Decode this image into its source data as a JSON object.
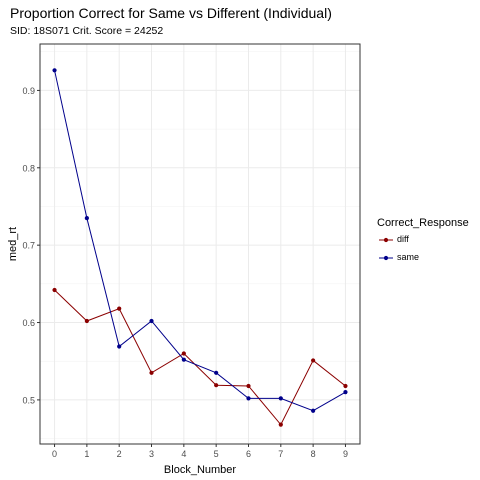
{
  "chart_data": {
    "type": "line",
    "title": "Proportion Correct for Same vs Different (Individual)",
    "subtitle": "SID:  18S071 Crit. Score =  24252",
    "xlabel": "Block_Number",
    "ylabel": "med_rt",
    "x": [
      0,
      1,
      2,
      3,
      4,
      5,
      6,
      7,
      8,
      9
    ],
    "xlim": [
      -0.45,
      9.45
    ],
    "ylim": [
      0.443,
      0.96
    ],
    "xticks": [
      "0",
      "1",
      "2",
      "3",
      "4",
      "5",
      "6",
      "7",
      "8",
      "9"
    ],
    "yticks": [
      0.5,
      0.6,
      0.7,
      0.8,
      0.9
    ],
    "ytick_labels": [
      "0.5",
      "0.6",
      "0.7",
      "0.8",
      "0.9"
    ],
    "grid": true,
    "legend_title": "Correct_Response",
    "legend_placement": "right",
    "series": [
      {
        "name": "diff",
        "color": "#8b0000",
        "values": [
          0.642,
          0.602,
          0.618,
          0.535,
          0.56,
          0.519,
          0.518,
          0.468,
          0.551,
          0.518
        ]
      },
      {
        "name": "same",
        "color": "#00008b",
        "values": [
          0.926,
          0.735,
          0.569,
          0.602,
          0.552,
          0.535,
          0.502,
          0.502,
          0.486,
          0.51
        ]
      }
    ]
  }
}
